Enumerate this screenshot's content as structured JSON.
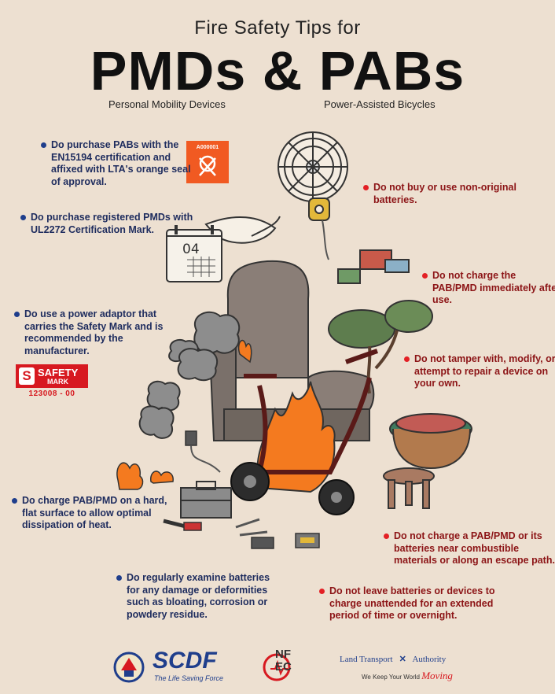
{
  "header": {
    "subtitle": "Fire Safety Tips for",
    "title": "PMDs & PABs",
    "left_acronym": "Personal Mobility Devices",
    "right_acronym": "Power-Assisted Bicycles"
  },
  "dos": [
    "Do purchase PABs with the EN15194 certification and affixed with LTA's orange seal of approval.",
    "Do purchase registered PMDs with UL2272 Certification Mark.",
    "Do use a power adaptor that carries the Safety Mark and is recommended by the manufacturer.",
    "Do charge PAB/PMD on a hard, flat surface to allow optimal dissipation of heat.",
    "Do regularly examine batteries for any damage or deformities such as bloating, corrosion or powdery residue."
  ],
  "donts": [
    "Do not buy or use non-original batteries.",
    "Do not charge the PAB/PMD immediately after use.",
    "Do not tamper with, modify, or attempt to repair a device on your own.",
    "Do not charge a PAB/PMD or its batteries near combustible materials or along an escape path.",
    "Do not leave batteries or devices to charge unattended for an extended period of time or overnight."
  ],
  "lta_seal": {
    "code": "A000001"
  },
  "calendar": {
    "day": "04"
  },
  "safety_mark": {
    "label_1": "SAFETY",
    "label_2": "MARK",
    "number": "123008 - 00"
  },
  "logos": {
    "scdf": "SCDF",
    "scdf_tagline": "The Life Saving Force",
    "nfec": "NF EC",
    "lta_name_1": "Land Transport",
    "lta_name_2": "Authority",
    "lta_tagline": "We Keep Your World",
    "lta_moving": "Moving"
  },
  "colors": {
    "background": "#ede0d1",
    "do_bullet": "#1f3e8c",
    "dont_bullet": "#e32025",
    "seal_orange": "#f15a22",
    "safety_red": "#d71920",
    "fire_orange": "#f47a1f"
  }
}
